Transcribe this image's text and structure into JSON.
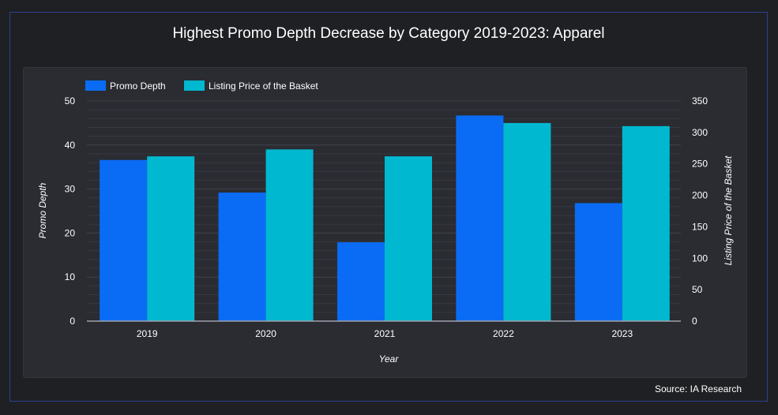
{
  "title": "Highest Promo Depth Decrease by Category 2019-2023: Apparel",
  "source": "Source: IA Research",
  "colors": {
    "promo": "#0a6cf5",
    "listing": "#00b8d0",
    "background": "#1f2023",
    "panel": "#2a2c32",
    "text": "#ffffff"
  },
  "chart_data": {
    "type": "bar",
    "title": "Highest Promo Depth Decrease by Category 2019-2023: Apparel",
    "categories": [
      "2019",
      "2020",
      "2021",
      "2022",
      "2023"
    ],
    "xlabel": "Year",
    "ylabel": "Promo Depth",
    "y2label": "Listing Price of the Basket",
    "ylim": [
      0,
      50
    ],
    "y2lim": [
      0,
      350
    ],
    "yticks": [
      "0",
      "10",
      "20",
      "30",
      "40",
      "50"
    ],
    "y2ticks": [
      "0",
      "50",
      "100",
      "150",
      "200",
      "250",
      "300",
      "350"
    ],
    "legend_position": "top-left",
    "grid": true,
    "series": [
      {
        "name": "Promo Depth",
        "axis": "left",
        "values": [
          36.6,
          29.2,
          17.9,
          46.7,
          26.8
        ]
      },
      {
        "name": "Listing Price of the Basket",
        "axis": "right",
        "values": [
          262,
          273,
          262,
          315,
          310
        ]
      }
    ]
  }
}
